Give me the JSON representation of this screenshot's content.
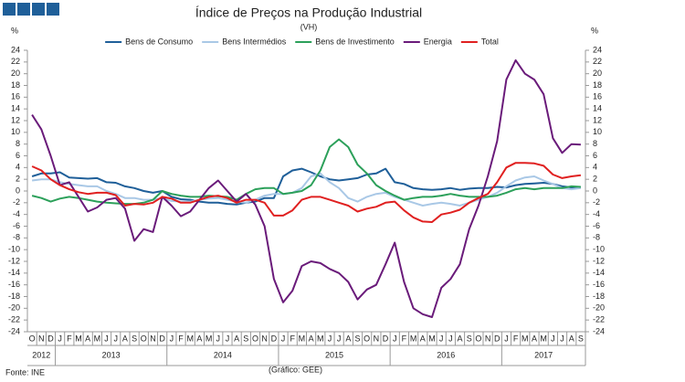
{
  "chart_data": {
    "type": "line",
    "title": "Índice de Preços na Produção Industrial",
    "subtitle": "(VH)",
    "y_label": "%",
    "y2_label": "%",
    "source": "Fonte: INE",
    "credit": "(Gráfico: GEE)",
    "categories": [
      "O",
      "N",
      "D",
      "J",
      "F",
      "M",
      "A",
      "M",
      "J",
      "J",
      "A",
      "S",
      "O",
      "N",
      "D",
      "J",
      "F",
      "M",
      "A",
      "M",
      "J",
      "J",
      "A",
      "S",
      "O",
      "N",
      "D",
      "J",
      "F",
      "M",
      "A",
      "M",
      "J",
      "J",
      "A",
      "S",
      "O",
      "N",
      "D",
      "J",
      "F",
      "M",
      "A",
      "M",
      "J",
      "J",
      "A",
      "S",
      "O",
      "N",
      "D",
      "J",
      "F",
      "M",
      "A",
      "M",
      "J",
      "J",
      "A",
      "S"
    ],
    "years": [
      "2012",
      "2013",
      "2014",
      "2015",
      "2016",
      "2017"
    ],
    "ylim": [
      -24,
      24
    ],
    "yticks": [
      -24,
      -22,
      -20,
      -18,
      -16,
      -14,
      -12,
      -10,
      -8,
      -6,
      -4,
      -2,
      0,
      2,
      4,
      6,
      8,
      10,
      12,
      14,
      16,
      18,
      20,
      22,
      24
    ],
    "y2lim": [
      -24,
      24
    ],
    "y2ticks": [
      -24,
      -22,
      -20,
      -18,
      -16,
      -14,
      -12,
      -10,
      -8,
      -6,
      -4,
      -2,
      0,
      2,
      4,
      6,
      8,
      10,
      12,
      14,
      16,
      18,
      20,
      22,
      24
    ],
    "legend": "top",
    "series": [
      {
        "name": "Bens de Consumo",
        "color": "#1f5f99",
        "values": [
          2.5,
          3,
          3,
          3.2,
          2.3,
          2.2,
          2.1,
          2.2,
          1.5,
          1.4,
          0.8,
          0.5,
          0,
          -0.3,
          0,
          -1,
          -1.4,
          -1.5,
          -1.8,
          -2,
          -2,
          -2.2,
          -2.3,
          -2,
          -1.8,
          -1.2,
          -1.2,
          2.5,
          3.5,
          3.8,
          3.2,
          2.5,
          2,
          1.8,
          2,
          2.2,
          2.8,
          3,
          3.8,
          1.5,
          1.2,
          0.5,
          0.3,
          0.2,
          0.3,
          0.5,
          0.2,
          0.4,
          0.5,
          0.5,
          0.7,
          0.6,
          1,
          1.2,
          1.3,
          1.4,
          1.2,
          0.8,
          0.6,
          0.6
        ]
      },
      {
        "name": "Bens Intermédios",
        "color": "#a9c8e6",
        "values": [
          1.8,
          2,
          2,
          1.5,
          1.2,
          1,
          0.8,
          0.8,
          0,
          -0.5,
          -1.2,
          -1.2,
          -1.5,
          -1.5,
          -1.2,
          -1.7,
          -1.8,
          -1.8,
          -1.5,
          -1.3,
          -1.2,
          -1.5,
          -1.8,
          -2,
          -1.5,
          -0.8,
          -0.5,
          -0.5,
          -0.3,
          0.5,
          2.5,
          3,
          1.5,
          0.5,
          -1.2,
          -1.8,
          -1,
          -0.5,
          -0.3,
          -1,
          -1.5,
          -2,
          -2.5,
          -2.2,
          -2,
          -2.2,
          -2.5,
          -2,
          -1.5,
          -1,
          -0.3,
          0.8,
          1.8,
          2.3,
          2.5,
          1.8,
          1.2,
          0.5,
          0.3,
          0.5
        ]
      },
      {
        "name": "Bens de Investimento",
        "color": "#2ca05a",
        "values": [
          -0.8,
          -1.2,
          -1.8,
          -1.3,
          -1,
          -1.2,
          -1.5,
          -1.8,
          -2,
          -2.1,
          -2.2,
          -2.2,
          -2,
          -1.5,
          0,
          -0.5,
          -0.8,
          -1,
          -1,
          -0.8,
          -0.9,
          -1,
          -1.5,
          -0.5,
          0.3,
          0.5,
          0.5,
          -0.5,
          -0.3,
          0,
          1,
          3.5,
          7.5,
          8.8,
          7.5,
          4.5,
          3,
          1,
          0,
          -0.8,
          -1.5,
          -1.2,
          -1,
          -1,
          -0.8,
          -0.5,
          -0.8,
          -1,
          -1,
          -1,
          -0.8,
          -0.3,
          0.3,
          0.5,
          0.3,
          0.5,
          0.5,
          0.5,
          0.8,
          0.7
        ]
      },
      {
        "name": "Energia",
        "color": "#6a1b7a",
        "values": [
          13,
          10.5,
          6,
          1,
          1.5,
          -1,
          -3.5,
          -2.8,
          -1.5,
          -1.2,
          -3,
          -8.5,
          -6.5,
          -7,
          -1,
          -2.5,
          -4.3,
          -3.5,
          -1.5,
          0.5,
          1.8,
          0,
          -1.8,
          -0.5,
          -2.3,
          -6,
          -15,
          -19,
          -17,
          -12.8,
          -12,
          -12.3,
          -13.3,
          -14,
          -15.5,
          -18.5,
          -16.8,
          -16,
          -12.5,
          -8.8,
          -15.5,
          -20,
          -21,
          -21.5,
          -16.5,
          -15,
          -12.5,
          -6.5,
          -2.5,
          2.5,
          8.5,
          19,
          22.3,
          20,
          19,
          16.5,
          9,
          6.5,
          8,
          7.9
        ]
      },
      {
        "name": "Total",
        "color": "#e02020",
        "values": [
          4.2,
          3.5,
          2,
          1,
          0.3,
          -0.2,
          -0.5,
          -0.3,
          -0.3,
          -0.7,
          -2.5,
          -2.2,
          -2.3,
          -2,
          -1,
          -1.3,
          -2,
          -2,
          -1.5,
          -1,
          -0.8,
          -1.2,
          -2,
          -1.5,
          -1.5,
          -2,
          -4.2,
          -4.2,
          -3.3,
          -1.5,
          -1,
          -1,
          -1.5,
          -2,
          -2.5,
          -3.5,
          -3,
          -2.7,
          -2,
          -1.8,
          -3.3,
          -4.5,
          -5.2,
          -5.3,
          -4,
          -3.7,
          -3.2,
          -2,
          -1.2,
          -0.5,
          1.5,
          4,
          4.8,
          4.8,
          4.7,
          4.3,
          2.8,
          2.2,
          2.5,
          2.7
        ]
      }
    ]
  }
}
